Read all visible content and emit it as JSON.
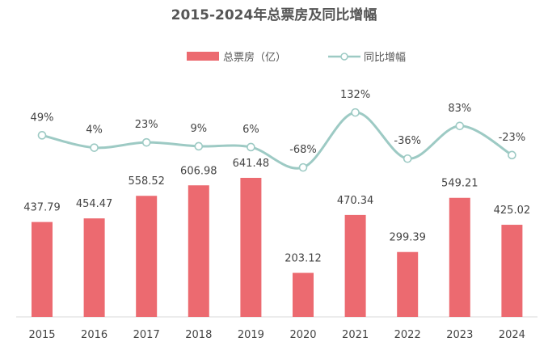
{
  "chart_data": {
    "type": "bar+line",
    "title": "2015-2024年总票房及同比增幅",
    "categories": [
      "2015",
      "2016",
      "2017",
      "2018",
      "2019",
      "2020",
      "2021",
      "2022",
      "2023",
      "2024"
    ],
    "series": [
      {
        "name": "总票房（亿）",
        "type": "bar",
        "color": "#ec6a70",
        "values": [
          437.79,
          454.47,
          558.52,
          606.98,
          641.48,
          203.12,
          470.34,
          299.39,
          549.21,
          425.02
        ],
        "labels": [
          "437.79",
          "454.47",
          "558.52",
          "606.98",
          "641.48",
          "203.12",
          "470.34",
          "299.39",
          "549.21",
          "425.02"
        ]
      },
      {
        "name": "同比增幅",
        "type": "line",
        "smooth": true,
        "color": "#9dcac4",
        "values": [
          49,
          4,
          23,
          9,
          6,
          -68,
          132,
          -36,
          83,
          -23
        ],
        "labels": [
          "49%",
          "4%",
          "23%",
          "9%",
          "6%",
          "-68%",
          "132%",
          "-36%",
          "83%",
          "-23%"
        ]
      }
    ],
    "legend": "top-center",
    "grid": false
  }
}
